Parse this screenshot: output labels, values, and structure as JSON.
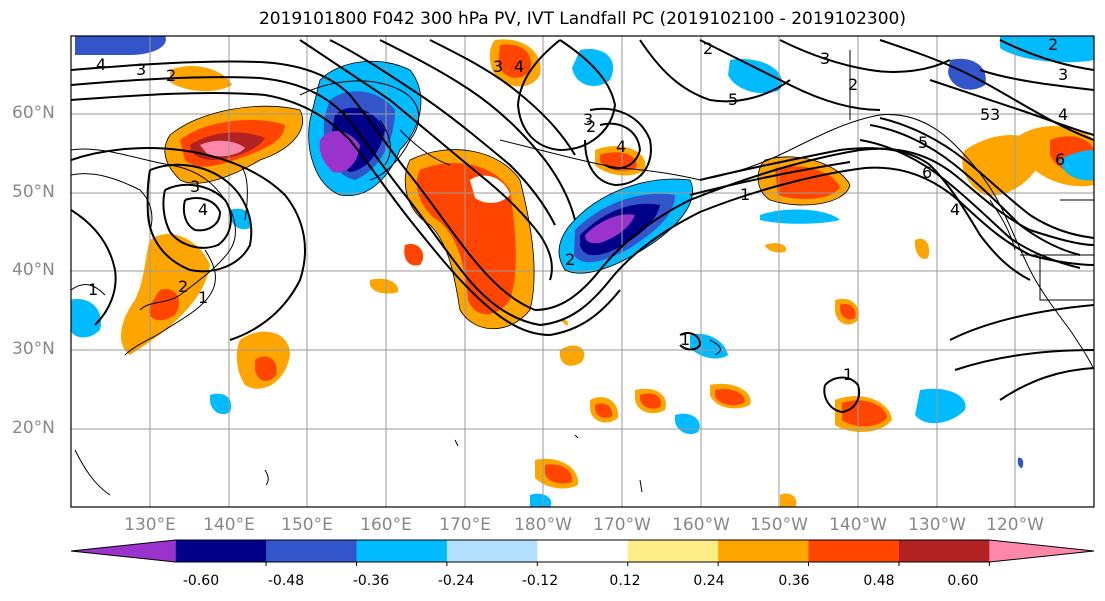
{
  "title": "2019101800 F042 300 hPa PV, IVT Landfall PC (2019102100 - 2019102300)",
  "lat_labels": [
    "60°N",
    "50°N",
    "40°N",
    "30°N",
    "20°N"
  ],
  "lon_labels": [
    "130°E",
    "140°E",
    "150°E",
    "160°E",
    "170°E",
    "180°W",
    "170°W",
    "160°W",
    "150°W",
    "140°W",
    "130°W",
    "120°W"
  ],
  "contour_labels": [
    "4",
    "3",
    "2",
    "2",
    "3",
    "2",
    "3",
    "4",
    "5",
    "3",
    "4",
    "2",
    "1",
    "2",
    "1",
    "1",
    "2",
    "3",
    "4",
    "5",
    "6",
    "1",
    "4",
    "3",
    "2",
    "1",
    "3",
    "4",
    "5",
    "6"
  ],
  "colorbar": {
    "colors": [
      "#9933cc",
      "#000088",
      "#3355cc",
      "#00bbff",
      "#b3e0ff",
      "#ffffff",
      "#ffee88",
      "#ffa500",
      "#ff4500",
      "#b22222",
      "#ff88aa"
    ],
    "tick_labels": [
      "-0.60",
      "-0.48",
      "-0.36",
      "-0.24",
      "-0.12",
      "0.12",
      "0.24",
      "0.36",
      "0.48",
      "0.60"
    ]
  }
}
